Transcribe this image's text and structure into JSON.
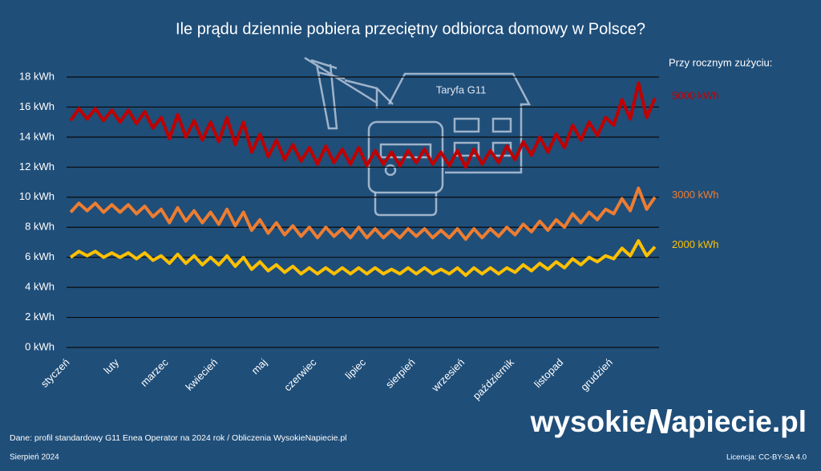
{
  "chart_data": {
    "type": "line",
    "title": "Ile prądu dziennie pobiera przeciętny odbiorca domowy w Polsce?",
    "legend_title": "Przy rocznym zużyciu:",
    "illustration_label": "Taryfa G11",
    "categories": [
      "styczeń",
      null,
      null,
      null,
      null,
      null,
      "luty",
      null,
      null,
      null,
      null,
      null,
      "marzec",
      null,
      null,
      null,
      null,
      null,
      "kwiecień",
      null,
      null,
      null,
      null,
      null,
      "maj",
      null,
      null,
      null,
      null,
      null,
      "czerwiec",
      null,
      null,
      null,
      null,
      null,
      "lipiec",
      null,
      null,
      null,
      null,
      null,
      "sierpień",
      null,
      null,
      null,
      null,
      null,
      "wrzesień",
      null,
      null,
      null,
      null,
      null,
      "październik",
      null,
      null,
      null,
      null,
      null,
      "listopad",
      null,
      null,
      null,
      null,
      null,
      "grudzień",
      null,
      null,
      null,
      null,
      null
    ],
    "series": [
      {
        "name": "5000 kWh",
        "color": "#c00000",
        "values": [
          15.1,
          15.9,
          15.2,
          15.9,
          15.1,
          15.8,
          15.0,
          15.8,
          14.9,
          15.7,
          14.6,
          15.3,
          13.9,
          15.5,
          14.0,
          15.1,
          13.8,
          15.0,
          13.7,
          15.3,
          13.5,
          15.0,
          13.0,
          14.2,
          12.7,
          13.8,
          12.5,
          13.5,
          12.4,
          13.3,
          12.2,
          13.4,
          12.3,
          13.2,
          12.2,
          13.3,
          12.1,
          13.1,
          12.2,
          13.0,
          12.1,
          13.1,
          12.3,
          13.2,
          12.2,
          13.0,
          12.1,
          13.1,
          12.0,
          13.2,
          12.2,
          13.1,
          12.3,
          13.4,
          12.5,
          13.7,
          12.8,
          14.0,
          13.0,
          14.2,
          13.3,
          14.8,
          13.8,
          15.0,
          14.1,
          15.3,
          14.8,
          16.5,
          15.2,
          17.6,
          15.3,
          16.6
        ]
      },
      {
        "name": "3000 kWh",
        "color": "#ed7d31",
        "values": [
          9.0,
          9.6,
          9.1,
          9.6,
          9.0,
          9.5,
          9.0,
          9.5,
          8.9,
          9.4,
          8.7,
          9.2,
          8.3,
          9.3,
          8.4,
          9.1,
          8.3,
          9.0,
          8.2,
          9.2,
          8.1,
          9.0,
          7.8,
          8.5,
          7.6,
          8.3,
          7.5,
          8.1,
          7.4,
          8.0,
          7.3,
          8.0,
          7.4,
          7.9,
          7.3,
          8.0,
          7.3,
          7.9,
          7.3,
          7.8,
          7.3,
          7.9,
          7.4,
          7.9,
          7.3,
          7.8,
          7.3,
          7.9,
          7.2,
          7.9,
          7.3,
          7.9,
          7.4,
          8.0,
          7.5,
          8.2,
          7.7,
          8.4,
          7.8,
          8.5,
          8.0,
          8.9,
          8.3,
          9.0,
          8.5,
          9.2,
          8.9,
          9.9,
          9.1,
          10.6,
          9.2,
          10.0
        ]
      },
      {
        "name": "2000 kWh",
        "color": "#ffc000",
        "values": [
          6.0,
          6.4,
          6.1,
          6.4,
          6.0,
          6.3,
          6.0,
          6.3,
          5.9,
          6.3,
          5.8,
          6.1,
          5.6,
          6.2,
          5.6,
          6.1,
          5.5,
          6.0,
          5.5,
          6.1,
          5.4,
          6.0,
          5.2,
          5.7,
          5.1,
          5.5,
          5.0,
          5.4,
          4.9,
          5.3,
          4.9,
          5.3,
          4.9,
          5.3,
          4.9,
          5.3,
          4.9,
          5.3,
          4.9,
          5.2,
          4.9,
          5.3,
          4.9,
          5.3,
          4.9,
          5.2,
          4.9,
          5.3,
          4.8,
          5.3,
          4.9,
          5.3,
          4.9,
          5.3,
          5.0,
          5.5,
          5.1,
          5.6,
          5.2,
          5.7,
          5.3,
          5.9,
          5.5,
          6.0,
          5.7,
          6.1,
          5.9,
          6.6,
          6.1,
          7.1,
          6.1,
          6.7
        ]
      }
    ],
    "ylim": [
      0,
      18
    ],
    "yticks": [
      {
        "value": 0,
        "label": "0 kWh"
      },
      {
        "value": 2,
        "label": "2 kWh"
      },
      {
        "value": 4,
        "label": "4 kWh"
      },
      {
        "value": 6,
        "label": "6 kWh"
      },
      {
        "value": 8,
        "label": "8 kWh"
      },
      {
        "value": 10,
        "label": "10 kWh"
      },
      {
        "value": 12,
        "label": "12 kWh"
      },
      {
        "value": 14,
        "label": "14 kWh"
      },
      {
        "value": 16,
        "label": "16 kWh"
      },
      {
        "value": 18,
        "label": "18 kWh"
      }
    ],
    "grid": true,
    "source": "Dane: profil standardowy G11 Enea Operator na 2024 rok / Obliczenia WysokieNapiecie.pl",
    "date": "Sierpień 2024",
    "license": "Licencja: CC-BY-SA 4.0",
    "logo": [
      "wysokie",
      "N",
      "apiecie.pl"
    ]
  }
}
